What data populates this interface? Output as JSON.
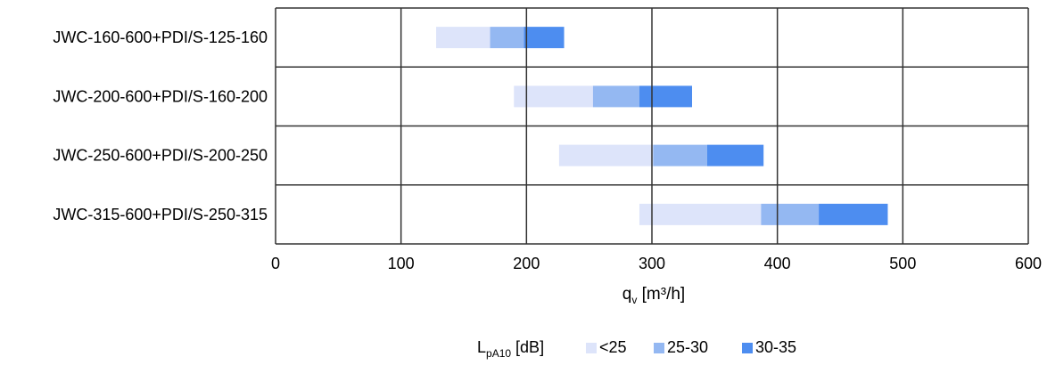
{
  "chart_data": {
    "type": "bar",
    "orientation": "horizontal",
    "stacked": true,
    "categories": [
      "JWC-160-600+PDI/S-125-160",
      "JWC-200-600+PDI/S-160-200",
      "JWC-250-600+PDI/S-200-250",
      "JWC-315-600+PDI/S-250-315"
    ],
    "ranges": [
      {
        "start": 128,
        "segments_end": [
          171,
          198,
          230
        ]
      },
      {
        "start": 190,
        "segments_end": [
          253,
          290,
          332
        ]
      },
      {
        "start": 226,
        "segments_end": [
          301,
          344,
          389
        ]
      },
      {
        "start": 290,
        "segments_end": [
          387,
          433,
          488
        ]
      }
    ],
    "series": [
      {
        "name": "<25",
        "color": "#dde4fa"
      },
      {
        "name": "25-30",
        "color": "#94b8f2"
      },
      {
        "name": "30-35",
        "color": "#4d8df0"
      }
    ],
    "xlim": [
      0,
      600
    ],
    "xticks": [
      "0",
      "100",
      "200",
      "300",
      "400",
      "500",
      "600"
    ],
    "xlabel": {
      "main": "q",
      "sub": "v",
      "rest": " [m³/h]"
    },
    "legend": {
      "title_main": "L",
      "title_sub": "pA10",
      "title_rest": " [dB]",
      "position": "bottom-center"
    },
    "grid": true
  }
}
